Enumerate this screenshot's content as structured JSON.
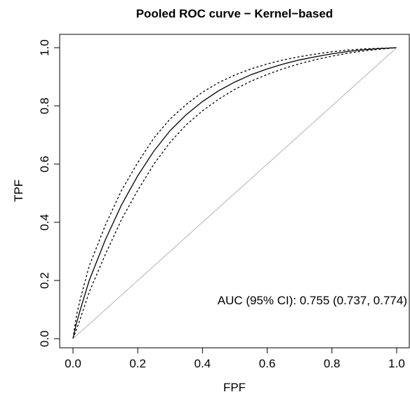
{
  "chart_data": {
    "type": "line",
    "title": "Pooled ROC curve − Kernel−based",
    "xlabel": "FPF",
    "ylabel": "TPF",
    "xlim": [
      0,
      1
    ],
    "ylim": [
      0,
      1
    ],
    "x_ticks": [
      0.0,
      0.2,
      0.4,
      0.6,
      0.8,
      1.0
    ],
    "y_ticks": [
      0.0,
      0.2,
      0.4,
      0.6,
      0.8,
      1.0
    ],
    "x_tick_labels": [
      "0.0",
      "0.2",
      "0.4",
      "0.6",
      "0.8",
      "1.0"
    ],
    "y_tick_labels": [
      "0.0",
      "0.2",
      "0.4",
      "0.6",
      "0.8",
      "1.0"
    ],
    "grid": false,
    "annotation": "AUC (95% CI): 0.755 (0.737, 0.774)",
    "series": [
      {
        "style": "solid",
        "color": "#000000",
        "x": [
          0,
          0.01,
          0.02,
          0.05,
          0.1,
          0.15,
          0.2,
          0.25,
          0.3,
          0.35,
          0.4,
          0.45,
          0.5,
          0.55,
          0.6,
          0.65,
          0.7,
          0.75,
          0.8,
          0.85,
          0.9,
          0.95,
          1.0
        ],
        "y": [
          0,
          0.05,
          0.09,
          0.2,
          0.34,
          0.46,
          0.56,
          0.645,
          0.715,
          0.77,
          0.815,
          0.852,
          0.882,
          0.907,
          0.927,
          0.944,
          0.958,
          0.969,
          0.979,
          0.987,
          0.993,
          0.997,
          1.0
        ]
      },
      {
        "style": "dashed",
        "color": "#000000",
        "x": [
          0,
          0.01,
          0.02,
          0.05,
          0.1,
          0.15,
          0.2,
          0.25,
          0.3,
          0.35,
          0.4,
          0.45,
          0.5,
          0.55,
          0.6,
          0.65,
          0.7,
          0.75,
          0.8,
          0.85,
          0.9,
          0.95,
          1.0
        ],
        "y": [
          0,
          0.075,
          0.125,
          0.25,
          0.39,
          0.51,
          0.605,
          0.69,
          0.755,
          0.805,
          0.847,
          0.88,
          0.906,
          0.927,
          0.944,
          0.958,
          0.969,
          0.978,
          0.986,
          0.992,
          0.996,
          0.998,
          1.0
        ]
      },
      {
        "style": "dashed",
        "color": "#000000",
        "x": [
          0,
          0.01,
          0.02,
          0.05,
          0.1,
          0.15,
          0.2,
          0.25,
          0.3,
          0.35,
          0.4,
          0.45,
          0.5,
          0.55,
          0.6,
          0.65,
          0.7,
          0.75,
          0.8,
          0.85,
          0.9,
          0.95,
          1.0
        ],
        "y": [
          0,
          0.03,
          0.06,
          0.16,
          0.29,
          0.41,
          0.51,
          0.6,
          0.675,
          0.735,
          0.783,
          0.823,
          0.857,
          0.885,
          0.908,
          0.928,
          0.945,
          0.959,
          0.971,
          0.981,
          0.989,
          0.995,
          1.0
        ]
      },
      {
        "style": "solid",
        "color": "#b3b3b3",
        "x": [
          0,
          1
        ],
        "y": [
          0,
          1
        ]
      }
    ]
  }
}
